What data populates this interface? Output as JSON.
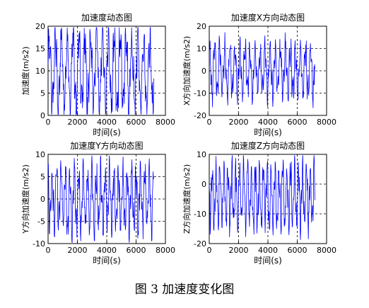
{
  "figure": {
    "caption": "图 3  加速度变化图"
  },
  "style": {
    "line_color": "#0000ff",
    "axis_color": "#000000",
    "grid": "dashed",
    "background": "#ffffff"
  },
  "chart_data": [
    {
      "type": "line",
      "title": "加速度动态图",
      "xlabel": "时间(s)",
      "ylabel": "加速度(m/s2)",
      "xlim": [
        0,
        8000
      ],
      "ylim": [
        0,
        20
      ],
      "xticks": [
        0,
        2000,
        4000,
        6000,
        8000
      ],
      "yticks": [
        0,
        5,
        10,
        15,
        20
      ],
      "grid": true,
      "series": [
        {
          "x_range": [
            0,
            7200
          ],
          "values": []
        }
      ]
    },
    {
      "type": "line",
      "title": "加速度X方向动态图",
      "xlabel": "时间(s)",
      "ylabel": "X方向加速度(m/s2)",
      "xlim": [
        0,
        8000
      ],
      "ylim": [
        -20,
        20
      ],
      "xticks": [
        0,
        2000,
        4000,
        6000,
        8000
      ],
      "yticks": [
        -20,
        -10,
        0,
        10,
        20
      ],
      "grid": true,
      "series": [
        {
          "x_range": [
            0,
            7200
          ],
          "values": []
        }
      ]
    },
    {
      "type": "line",
      "title": "加速度Y方向动态图",
      "xlabel": "时间(s)",
      "ylabel": "Y方向加速度(m/s2)",
      "xlim": [
        0,
        8000
      ],
      "ylim": [
        -10,
        10
      ],
      "xticks": [
        0,
        2000,
        4000,
        6000,
        8000
      ],
      "yticks": [
        -10,
        -5,
        0,
        5,
        10
      ],
      "grid": true,
      "series": [
        {
          "x_range": [
            0,
            7200
          ],
          "values": []
        }
      ]
    },
    {
      "type": "line",
      "title": "加速度Z方向动态图",
      "xlabel": "时间(s)",
      "ylabel": "Z方向加速度(m/s2)",
      "xlim": [
        0,
        8000
      ],
      "ylim": [
        -20,
        10
      ],
      "xticks": [
        0,
        2000,
        4000,
        6000,
        8000
      ],
      "yticks": [
        -20,
        -10,
        0,
        10
      ],
      "grid": true,
      "series": [
        {
          "x_range": [
            0,
            7200
          ],
          "values": []
        }
      ]
    }
  ]
}
